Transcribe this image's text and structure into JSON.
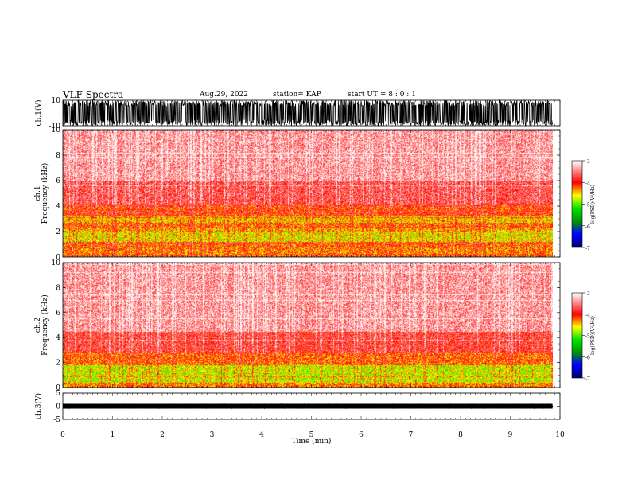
{
  "header": {
    "title": "VLF Spectra",
    "date": "Aug.29, 2022",
    "station": "station= KAP",
    "start": "start  UT  =   8  : 0  : 1"
  },
  "chart_data": [
    {
      "type": "line",
      "panel": "ch1-waveform",
      "ylabel": "ch.1(V)",
      "ylim": [
        -10,
        10
      ],
      "y_ticks": [
        "10",
        "-10"
      ],
      "xlim": [
        0,
        10
      ],
      "x_extent_min": 9.85,
      "description_values": {
        "amplitude_range": [
          -10,
          10
        ]
      }
    },
    {
      "type": "heatmap",
      "panel": "ch1-spectrogram",
      "ylabel": "ch.1",
      "ylabel2": "Frequency  (kHz)",
      "ylim": [
        0,
        10
      ],
      "y_ticks": [
        "0",
        "2",
        "4",
        "6",
        "8",
        "10"
      ],
      "xlim": [
        0,
        10
      ],
      "x_extent_min": 9.85,
      "bands": [
        {
          "f": [
            0.0,
            0.3
          ],
          "level": -4.2
        },
        {
          "f": [
            0.3,
            0.8
          ],
          "level": -4.3
        },
        {
          "f": [
            0.8,
            1.2
          ],
          "level": -4.2
        },
        {
          "f": [
            1.2,
            2.0
          ],
          "level": -4.6
        },
        {
          "f": [
            2.0,
            2.3
          ],
          "level": -4.4
        },
        {
          "f": [
            2.3,
            2.7
          ],
          "level": -4.2
        },
        {
          "f": [
            2.7,
            3.2
          ],
          "level": -4.5
        },
        {
          "f": [
            3.2,
            4.2
          ],
          "level": -4.1
        },
        {
          "f": [
            4.2,
            6.0
          ],
          "level": -3.7
        },
        {
          "f": [
            6.0,
            10.0
          ],
          "level": -3.4
        }
      ],
      "colorbar": {
        "label": "log(PSD)(V²/Hz)",
        "range": [
          -7,
          -3
        ],
        "ticks": [
          "-3",
          "-4",
          "-5",
          "-6",
          "-7"
        ]
      }
    },
    {
      "type": "heatmap",
      "panel": "ch2-spectrogram",
      "ylabel": "ch.2",
      "ylabel2": "Frequency  (kHz)",
      "ylim": [
        0,
        10
      ],
      "y_ticks": [
        "0",
        "2",
        "4",
        "6",
        "8",
        "10"
      ],
      "xlim": [
        0,
        10
      ],
      "x_extent_min": 9.85,
      "bands": [
        {
          "f": [
            0.0,
            0.4
          ],
          "level": -4.3
        },
        {
          "f": [
            0.4,
            1.8
          ],
          "level": -4.7
        },
        {
          "f": [
            1.8,
            2.8
          ],
          "level": -4.2
        },
        {
          "f": [
            2.8,
            4.5
          ],
          "level": -3.8
        },
        {
          "f": [
            4.5,
            10.0
          ],
          "level": -3.4
        }
      ],
      "colorbar": {
        "label": "log(PSD)(V²/Hz)",
        "range": [
          -7,
          -3
        ],
        "ticks": [
          "-3",
          "-4",
          "-5",
          "-6",
          "-7"
        ]
      }
    },
    {
      "type": "line",
      "panel": "ch3-waveform",
      "ylabel": "ch.3(V)",
      "ylim": [
        -5,
        5
      ],
      "y_ticks": [
        "5",
        "0",
        "-5"
      ],
      "xlim": [
        0,
        10
      ],
      "x_extent_min": 9.85,
      "description_values": {
        "amplitude_range": [
          -0.3,
          0.3
        ]
      }
    }
  ],
  "x_axis": {
    "label": "Time  (min)",
    "ticks": [
      "0",
      "1",
      "2",
      "3",
      "4",
      "5",
      "6",
      "7",
      "8",
      "9",
      "10"
    ]
  },
  "colors": {
    "background": "#ffffff",
    "axis": "#000000",
    "colormap": [
      "#000080",
      "#0000ff",
      "#00c000",
      "#00ff00",
      "#ffff00",
      "#ff0000",
      "#ffffff"
    ]
  }
}
